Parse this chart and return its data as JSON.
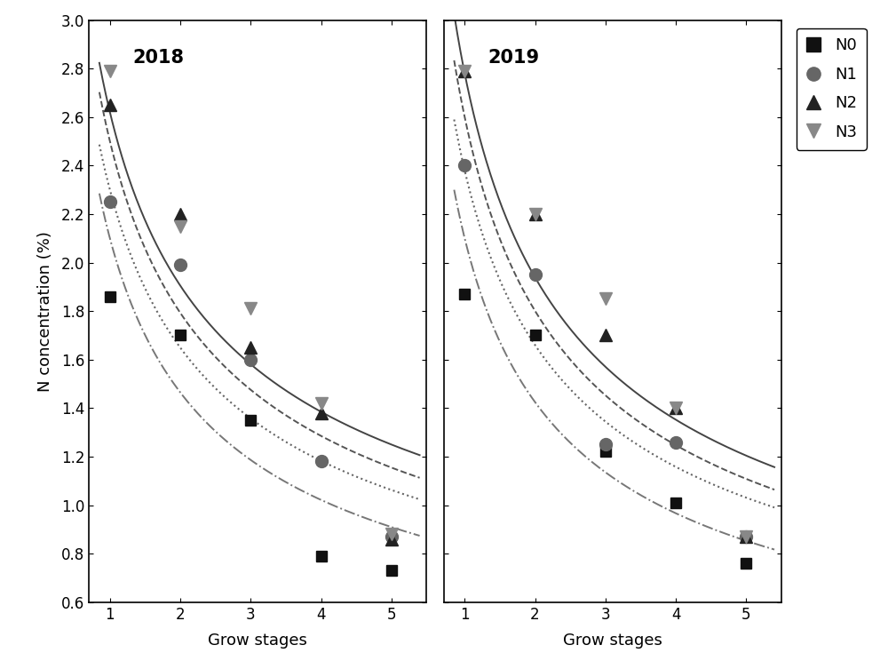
{
  "title_2018": "2018",
  "title_2019": "2019",
  "xlabel": "Grow stages",
  "ylabel": "N concentration (%)",
  "ylim": [
    0.6,
    3.0
  ],
  "xlim": [
    0.7,
    5.5
  ],
  "yticks": [
    0.6,
    0.8,
    1.0,
    1.2,
    1.4,
    1.6,
    1.8,
    2.0,
    2.2,
    2.4,
    2.6,
    2.8,
    3.0
  ],
  "xticks": [
    1,
    2,
    3,
    4,
    5
  ],
  "stages": [
    1,
    2,
    3,
    4,
    5
  ],
  "data_2018": {
    "N0": [
      1.86,
      1.7,
      1.35,
      0.79,
      0.73
    ],
    "N1": [
      2.25,
      1.99,
      1.6,
      1.18,
      0.87
    ],
    "N2": [
      2.65,
      2.2,
      1.65,
      1.38,
      0.86
    ],
    "N3": [
      2.79,
      2.15,
      1.81,
      1.42,
      0.88
    ]
  },
  "data_2019": {
    "N0": [
      1.87,
      1.7,
      1.22,
      1.01,
      0.76
    ],
    "N1": [
      2.4,
      1.95,
      1.25,
      1.26,
      0.87
    ],
    "N2": [
      2.79,
      2.2,
      1.7,
      1.4,
      0.87
    ],
    "N3": [
      2.79,
      2.2,
      1.85,
      1.4,
      0.87
    ]
  },
  "curves_2018": [
    {
      "style": "-",
      "color": "#444444",
      "lw": 1.4,
      "a": 2.62,
      "b": 0.46
    },
    {
      "style": "--",
      "color": "#555555",
      "lw": 1.4,
      "a": 2.5,
      "b": 0.48
    },
    {
      "style": ":",
      "color": "#666666",
      "lw": 1.5,
      "a": 2.3,
      "b": 0.48
    },
    {
      "style": "-.",
      "color": "#777777",
      "lw": 1.4,
      "a": 2.1,
      "b": 0.52
    }
  ],
  "curves_2019": [
    {
      "style": "-",
      "color": "#444444",
      "lw": 1.4,
      "a": 2.78,
      "b": 0.52
    },
    {
      "style": "--",
      "color": "#555555",
      "lw": 1.4,
      "a": 2.6,
      "b": 0.53
    },
    {
      "style": ":",
      "color": "#666666",
      "lw": 1.5,
      "a": 2.38,
      "b": 0.52
    },
    {
      "style": "-.",
      "color": "#777777",
      "lw": 1.4,
      "a": 2.1,
      "b": 0.56
    }
  ],
  "background": "#ffffff"
}
